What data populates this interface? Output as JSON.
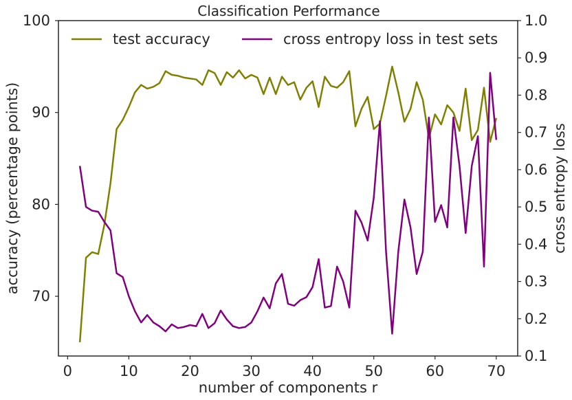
{
  "chart_data": {
    "type": "line",
    "title": "Classification Performance",
    "xlabel": "number of components r",
    "ylabel": "accuracy (percentage points)",
    "y2label": "cross entropy loss",
    "xlim": [
      -1.5,
      73.5
    ],
    "ylim": [
      63.5,
      100
    ],
    "y2lim": [
      0.1,
      1.0
    ],
    "xticks": [
      "0",
      "10",
      "20",
      "30",
      "40",
      "50",
      "60",
      "70"
    ],
    "yticks": [
      "70",
      "80",
      "90",
      "100"
    ],
    "y2ticks": [
      "0.1",
      "0.2",
      "0.3",
      "0.4",
      "0.5",
      "0.6",
      "0.7",
      "0.8",
      "0.9",
      "1.0"
    ],
    "grid": false,
    "legend": "top",
    "series": [
      {
        "name": "test accuracy",
        "axis": "left",
        "color": "#808000",
        "x": [
          2,
          3,
          4,
          5,
          6,
          7,
          8,
          9,
          10,
          11,
          12,
          13,
          14,
          15,
          16,
          17,
          18,
          19,
          20,
          21,
          22,
          23,
          24,
          25,
          26,
          27,
          28,
          29,
          30,
          31,
          32,
          33,
          34,
          35,
          36,
          37,
          38,
          39,
          40,
          41,
          42,
          43,
          44,
          45,
          46,
          47,
          48,
          49,
          50,
          51,
          52,
          53,
          54,
          55,
          56,
          57,
          58,
          59,
          60,
          61,
          62,
          63,
          64,
          65,
          66,
          67,
          68,
          69,
          70
        ],
        "y": [
          65.0,
          74.2,
          74.8,
          74.6,
          77.8,
          82.3,
          88.2,
          89.2,
          90.6,
          92.2,
          93.0,
          92.6,
          92.8,
          93.2,
          94.5,
          94.1,
          94.0,
          93.8,
          93.7,
          93.6,
          93.0,
          94.6,
          94.3,
          93.0,
          94.4,
          93.8,
          94.6,
          93.7,
          94.1,
          93.8,
          92.0,
          93.8,
          92.0,
          93.9,
          93.0,
          93.3,
          91.4,
          92.7,
          93.4,
          90.6,
          93.9,
          92.9,
          92.7,
          93.3,
          94.5,
          88.5,
          90.4,
          91.7,
          88.2,
          88.8,
          91.8,
          95.0,
          92.2,
          89.0,
          90.4,
          93.3,
          91.4,
          87.2,
          89.8,
          88.7,
          90.8,
          90.0,
          88.0,
          92.6,
          87.0,
          88.1,
          92.7,
          86.8,
          89.4
        ]
      },
      {
        "name": "cross entropy loss in test sets",
        "axis": "right",
        "color": "#800080",
        "x": [
          2,
          3,
          4,
          5,
          6,
          7,
          8,
          9,
          10,
          11,
          12,
          13,
          14,
          15,
          16,
          17,
          18,
          19,
          20,
          21,
          22,
          23,
          24,
          25,
          26,
          27,
          28,
          29,
          30,
          31,
          32,
          33,
          34,
          35,
          36,
          37,
          38,
          39,
          40,
          41,
          42,
          43,
          44,
          45,
          46,
          47,
          48,
          49,
          50,
          51,
          52,
          53,
          54,
          55,
          56,
          57,
          58,
          59,
          60,
          61,
          62,
          63,
          64,
          65,
          66,
          67,
          68,
          69,
          70
        ],
        "y": [
          0.61,
          0.5,
          0.49,
          0.487,
          0.46,
          0.437,
          0.322,
          0.312,
          0.26,
          0.22,
          0.19,
          0.21,
          0.19,
          0.18,
          0.166,
          0.185,
          0.175,
          0.178,
          0.183,
          0.18,
          0.213,
          0.175,
          0.188,
          0.222,
          0.198,
          0.18,
          0.175,
          0.178,
          0.19,
          0.22,
          0.257,
          0.228,
          0.295,
          0.32,
          0.24,
          0.235,
          0.25,
          0.258,
          0.285,
          0.36,
          0.23,
          0.234,
          0.34,
          0.3,
          0.23,
          0.49,
          0.458,
          0.41,
          0.525,
          0.73,
          0.38,
          0.16,
          0.38,
          0.52,
          0.445,
          0.32,
          0.38,
          0.74,
          0.46,
          0.505,
          0.445,
          0.74,
          0.61,
          0.43,
          0.61,
          0.69,
          0.34,
          0.86,
          0.68
        ]
      }
    ]
  }
}
